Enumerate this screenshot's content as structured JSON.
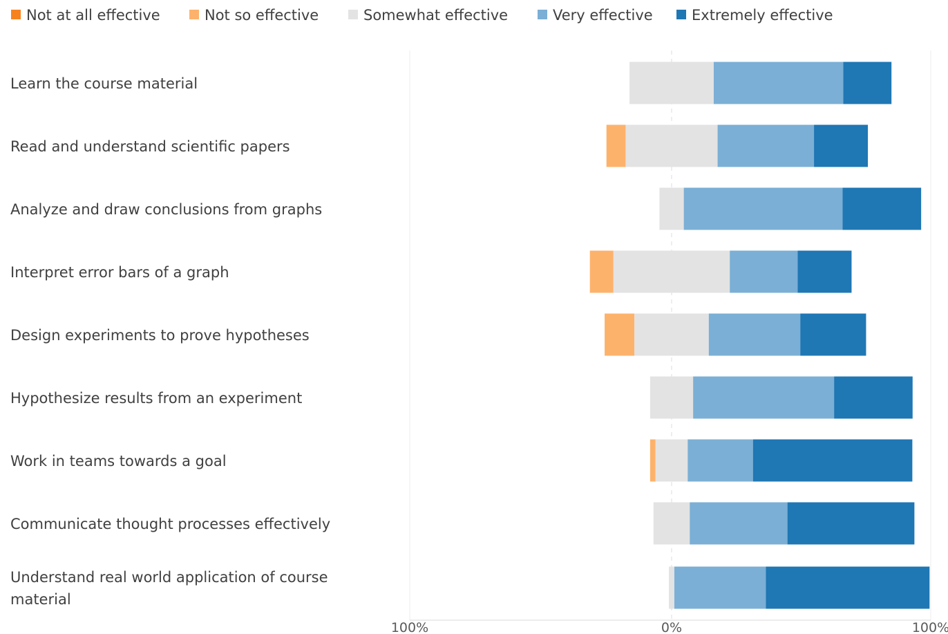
{
  "chart_data": {
    "type": "bar",
    "orientation": "horizontal",
    "stacked": "diverging",
    "title": "",
    "xlabel": "",
    "ylabel": "",
    "xlim": [
      -100,
      100
    ],
    "x_ticks": [
      "100%",
      "0%",
      "100%"
    ],
    "legend_position": "top",
    "grid": false,
    "categories": [
      "Learn the course material",
      "Read and understand scientific papers",
      "Analyze and draw conclusions from graphs",
      "Interpret error bars of a graph",
      "Design experiments to prove hypotheses",
      "Hypothesize results from an experiment",
      "Work in teams towards a goal",
      "Communicate thought processes effectively",
      "Understand real world application of course material"
    ],
    "series": [
      {
        "name": "Not at all effective",
        "color": "#F6821F",
        "values": [
          0,
          0,
          0,
          0,
          0,
          0,
          0,
          0,
          0
        ]
      },
      {
        "name": "Not so effective",
        "color": "#FDB26C",
        "values": [
          0,
          7.4,
          0,
          9.1,
          11.5,
          0,
          2.1,
          0,
          0
        ]
      },
      {
        "name": "Somewhat effective",
        "color": "#E3E3E3",
        "values": [
          32.5,
          35.5,
          9.4,
          44.9,
          28.7,
          16.6,
          12.4,
          14,
          2.1
        ]
      },
      {
        "name": "Very effective",
        "color": "#7BAFD5",
        "values": [
          50,
          37.2,
          61.3,
          26.2,
          35.3,
          54.4,
          25.2,
          37.7,
          35.3
        ]
      },
      {
        "name": "Extremely effective",
        "color": "#1F77B4",
        "values": [
          18.6,
          20.8,
          30.3,
          20.8,
          25.4,
          30.3,
          61.5,
          49,
          63.2
        ]
      }
    ]
  }
}
